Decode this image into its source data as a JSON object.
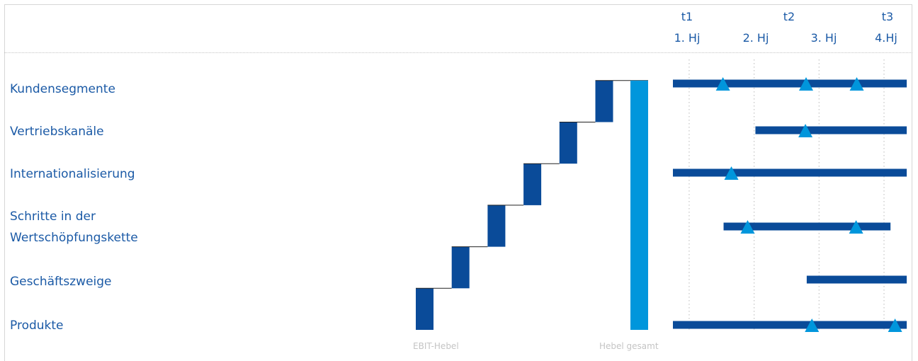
{
  "colors": {
    "dark_blue": "#0a4b99",
    "light_blue": "#0096dc",
    "label_blue": "#1b5aa6",
    "grid": "#c4c4c4"
  },
  "chart_data": {
    "type": "waterfall-timeline",
    "rows": [
      {
        "label": "Kundensegmente",
        "label_line2": ""
      },
      {
        "label": "Vertriebskanäle",
        "label_line2": ""
      },
      {
        "label": "Internationalisierung",
        "label_line2": ""
      },
      {
        "label": "Schritte in der",
        "label_line2": "Wertschöpfungskette"
      },
      {
        "label": "Geschäftszweige",
        "label_line2": ""
      },
      {
        "label": "Produkte",
        "label_line2": ""
      }
    ],
    "waterfall": {
      "caption_steps": "EBIT-Hebel",
      "caption_total": "Hebel gesamt",
      "steps_bottom_to_top": [
        1,
        1,
        1,
        1,
        1,
        1
      ],
      "total": 6
    },
    "timeline": {
      "axis_range": [
        0,
        4
      ],
      "milestones": [
        {
          "name": "t1",
          "at": 0.25
        },
        {
          "name": "t2",
          "at": 2.0
        },
        {
          "name": "t3",
          "at": 3.9
        }
      ],
      "half_years": [
        {
          "name": "1. Hj",
          "at": 0.25
        },
        {
          "name": "2. Hj",
          "at": 1.25
        },
        {
          "name": "3. Hj",
          "at": 2.25
        },
        {
          "name": "4.Hj",
          "at": 3.25
        }
      ],
      "gridlines_at": [
        0.25,
        1.25,
        2.25,
        3.25
      ],
      "bars": [
        {
          "row": 0,
          "start": 0.0,
          "end": 3.6,
          "markers": [
            0.77,
            2.05,
            2.83
          ]
        },
        {
          "row": 1,
          "start": 1.27,
          "end": 3.6,
          "markers": [
            2.04
          ]
        },
        {
          "row": 2,
          "start": 0.0,
          "end": 3.6,
          "markers": [
            0.9
          ]
        },
        {
          "row": 3,
          "start": 0.78,
          "end": 3.35,
          "markers": [
            1.15,
            2.82
          ]
        },
        {
          "row": 4,
          "start": 2.06,
          "end": 3.6,
          "markers": []
        },
        {
          "row": 5,
          "start": 0.0,
          "end": 3.6,
          "markers": [
            2.14,
            3.42
          ]
        }
      ]
    }
  }
}
